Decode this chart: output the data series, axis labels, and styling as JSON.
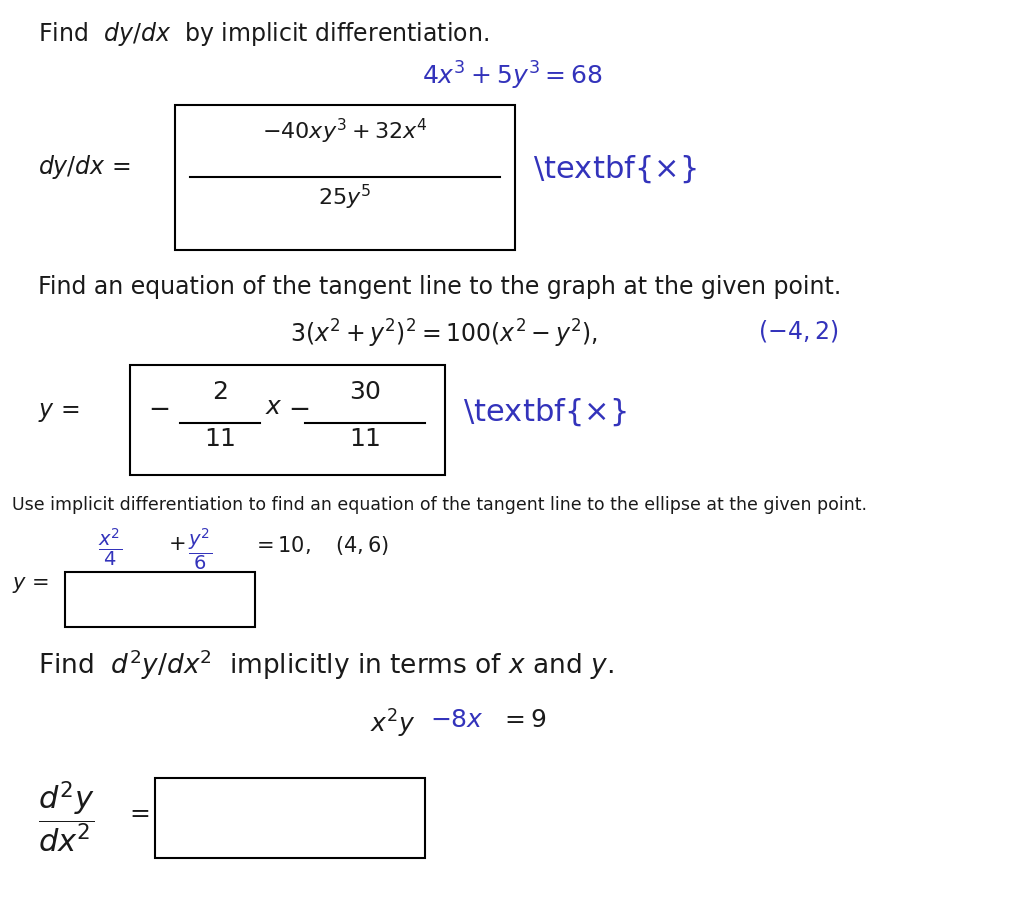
{
  "background_color": "#ffffff",
  "blue": "#3333bb",
  "black": "#1a1a1a",
  "line1": "Find  $dy/dx$  by implicit differentiation.",
  "eq1_blue": "$4x^3 + 5y^3 = 68$",
  "dydx_label": "$dy/dx$ =",
  "box1_num": "$-40xy^3 + 32x^4$",
  "box1_den": "$25y^5$",
  "find_tangent": "Find an equation of the tangent line to the graph at the given point.",
  "eq2_black": "$3(x^2 + y^2)^2 = 100(x^2 - y^2),$",
  "eq2_blue_pt": "$(-4, 2)$",
  "y_eq": "$y$ =",
  "box2_expr": "$-\\dfrac{2}{11}x - \\dfrac{30}{11}$",
  "use_implicit": "Use implicit differentiation to find an equation of the tangent line to the ellipse at the given point.",
  "eq3": "$\\dfrac{x^2}{4} + \\dfrac{y^2}{6} = 10,$",
  "eq3_pt": "$(4, 6)$",
  "y_eq2": "$y$ =",
  "find_d2": "Find  $d^2y/dx^2$  implicitly in terms of $x$ and $y$.",
  "eq4_black": "$x^2y$",
  "eq4_blue1": "$- 8x$",
  "eq4_eq": "$=$",
  "eq4_blue2": "$9$",
  "d2y_frac": "$\\dfrac{d^2y}{dx^2}$",
  "eq_sign": "$=$"
}
